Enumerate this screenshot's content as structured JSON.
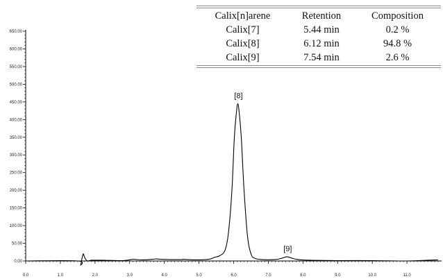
{
  "chart_data": {
    "type": "line",
    "title": "",
    "xlabel": "",
    "ylabel": "",
    "xlim": [
      0,
      12
    ],
    "ylim": [
      0,
      650
    ],
    "x_ticks": [
      "0.0",
      "1.0",
      "2.0",
      "3.0",
      "4.0",
      "5.0",
      "6.0",
      "7.0",
      "8.0",
      "9.0",
      "10.0",
      "11.0"
    ],
    "y_ticks": [
      "0.00",
      "50.00",
      "100.00",
      "150.00",
      "200.00",
      "250.00",
      "300.00",
      "350.00",
      "400.00",
      "450.00",
      "500.00",
      "550.00",
      "600.00",
      "650.00"
    ],
    "grid": false,
    "series": [
      {
        "x": [
          0.0,
          1.5,
          1.58,
          1.62,
          1.66,
          1.7,
          1.75,
          1.8,
          1.9,
          2.2,
          2.8,
          3.05,
          3.1,
          3.2,
          3.4,
          3.7,
          3.75,
          3.85,
          4.1,
          4.5,
          4.55,
          4.65,
          5.0,
          5.3,
          5.44,
          5.6,
          5.75,
          5.85,
          5.95,
          6.02,
          6.08,
          6.12,
          6.16,
          6.22,
          6.3,
          6.4,
          6.5,
          6.6,
          6.8,
          7.2,
          7.4,
          7.54,
          7.68,
          7.85,
          8.2,
          9.0,
          10.0,
          11.0,
          11.6,
          11.9
        ],
        "y": [
          0,
          0,
          -12,
          5,
          20,
          10,
          2,
          0,
          2,
          2,
          1,
          4,
          5,
          4,
          3,
          5,
          6,
          5,
          4,
          4,
          5,
          4,
          3,
          5,
          10,
          15,
          30,
          80,
          200,
          350,
          420,
          445,
          420,
          350,
          200,
          70,
          20,
          8,
          4,
          4,
          8,
          12,
          8,
          4,
          2,
          1,
          1,
          0,
          2,
          3
        ]
      }
    ],
    "annotations": [
      {
        "text": "[8]",
        "x": 6.12,
        "y": 445
      },
      {
        "text": "[9]",
        "x": 7.54,
        "y": 12
      }
    ]
  },
  "table": {
    "headers": [
      "Calix[n]arene",
      "Retention",
      "Composition"
    ],
    "rows": [
      [
        "Calix[7]",
        "5.44 min",
        "0.2 %"
      ],
      [
        "Calix[8]",
        "6.12 min",
        "94.8 %"
      ],
      [
        "Calix[9]",
        "7.54 min",
        "2.6 %"
      ]
    ]
  }
}
